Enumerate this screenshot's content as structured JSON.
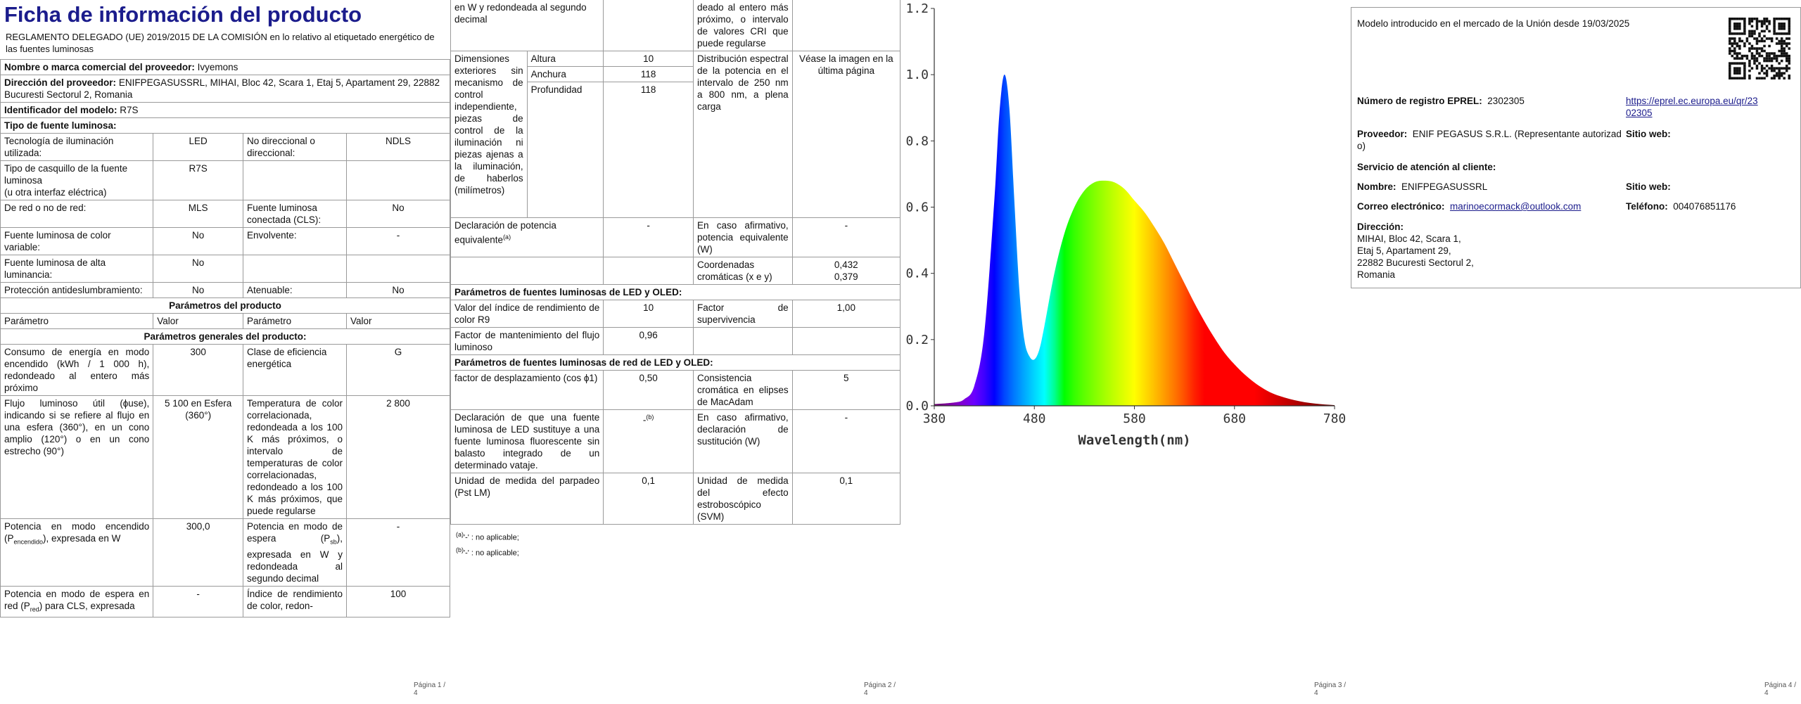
{
  "p1": {
    "title": "Ficha de información del producto",
    "regulation": "REGLAMENTO DELEGADO (UE) 2019/2015 DE LA COMISIÓN en lo relativo al etiquetado energético de las fuentes luminosas",
    "supplier_label": "Nombre o marca comercial del proveedor:",
    "supplier_value": "Ivyemons",
    "address_label": "Dirección del proveedor:",
    "address_value": "ENIFPEGASUSSRL, MIHAI, Bloc 42, Scara 1, Etaj 5, Apartament 29, 22882 Bucuresti Sectorul 2, Romania",
    "model_label": "Identificador del modelo:",
    "model_value": "R7S",
    "type_label": "Tipo de fuente luminosa:",
    "rows": {
      "tech_l": "Tecnología de iluminación utilizada:",
      "tech_v": "LED",
      "dir_l": "No direccional o direccional:",
      "dir_v": "NDLS",
      "cap_l": "Tipo de casquillo de la fuente luminosa",
      "cap_l2": "(u otra interfaz eléctrica)",
      "cap_v": "R7S",
      "mains_l": "De red o no de red:",
      "mains_v": "MLS",
      "cls_l": "Fuente luminosa conectada (CLS):",
      "cls_v": "No",
      "colvar_l": "Fuente luminosa de color variable:",
      "colvar_v": "No",
      "env_l": "Envolvente:",
      "env_v": "-",
      "hl_l": "Fuente luminosa de alta luminancia:",
      "hl_v": "No",
      "glare_l": "Protección antideslumbramiento:",
      "glare_v": "No",
      "dim_l": "Atenuable:",
      "dim_v": "No"
    },
    "product_params": "Parámetros del producto",
    "col_param": "Parámetro",
    "col_value": "Valor",
    "general_params": "Parámetros generales del producto:",
    "energy_l": "Consumo de energía en modo encendido (kWh / 1 000 h), redondeado al entero más próximo",
    "energy_v": "300",
    "class_l": "Clase de eficiencia energética",
    "class_v": "G",
    "flux_l": "Flujo luminoso útil (ɸuse), indicando si se refiere al flujo en una esfera (360°), en un cono amplio (120°) o en un cono estrecho (90°)",
    "flux_v": "5 100 en Esfera (360°)",
    "cct_l": "Temperatura de color correlacionada, redondeada a los 100 K más próximos, o intervalo de temperaturas de color correlacionadas, redondeado a los 100 K más próximos, que puede regularse",
    "cct_v": "2 800",
    "pon_l1": "Potencia en modo encendido (P",
    "pon_sub": "encendido",
    "pon_l2": "), expresada en W",
    "pon_v": "300,0",
    "psb_l1": "Potencia en modo de espera (P",
    "psb_sub": "sb",
    "psb_l2": "), expresada en W y redondeada al segundo decimal",
    "psb_v": "-",
    "pnet_l1": "Potencia en modo de espera en red (P",
    "pnet_sub": "red",
    "pnet_l2": ") para CLS, expresada",
    "pnet_v": "-",
    "cri_l": "Índice de rendimiento de color, redon-",
    "cri_v": "100",
    "footer": "Página 1 / 4"
  },
  "p2": {
    "cont_l": "en W y redondeada al segundo decimal",
    "cont_r": "deado al entero más próximo, o intervalo de valores CRI que puede regularse",
    "dims_l": "Dimensiones exteriores sin mecanismo de control independiente, piezas de control de la iluminación ni piezas ajenas a la iluminación, de haberlos (milímetros)",
    "height_l": "Altura",
    "height_v": "10",
    "width_l": "Anchura",
    "width_v": "118",
    "depth_l": "Profundidad",
    "depth_v": "118",
    "spd_l": "Distribución espectral de la potencia en el intervalo de 250 nm a 800 nm, a plena carga",
    "spd_v": "Véase la imagen en la última página",
    "equiv_l": "Declaración de potencia equivalente",
    "equiv_sup": "(a)",
    "equiv_v": "-",
    "equiv_w_l": "En caso afirmativo, potencia equivalente (W)",
    "equiv_w_v": "-",
    "chroma_l": "Coordenadas cromáticas (x e y)",
    "chroma_x": "0,432",
    "chroma_y": "0,379",
    "led_params": "Parámetros de fuentes luminosas de LED y OLED:",
    "r9_l": "Valor del índice de rendimiento de color R9",
    "r9_v": "10",
    "surv_l": "Factor de supervivencia",
    "surv_v": "1,00",
    "maint_l": "Factor de mantenimiento del flujo luminoso",
    "maint_v": "0,96",
    "mains_led_params": "Parámetros de fuentes luminosas de red de LED y OLED:",
    "disp_l": "factor de desplazamiento (cos ϕ1)",
    "disp_v": "0,50",
    "macadam_l": "Consistencia cromática en elipses de MacAdam",
    "macadam_v": "5",
    "repl_l": "Declaración de que una fuente luminosa de LED sustituye a una fuente luminosa fluorescente sin balasto integrado de un determinado vataje.",
    "repl_v": "-",
    "repl_sup": "(b)",
    "repl_w_l": "En caso afirmativo, declaración de sustitución (W)",
    "repl_w_v": "-",
    "pst_l": "Unidad de medida del parpadeo (Pst LM)",
    "pst_v": "0,1",
    "svm_l": "Unidad de medida del efecto estroboscópico (SVM)",
    "svm_v": "0,1",
    "note_a_sup": "(a)",
    "note_a": "'-' : no aplicable;",
    "note_b_sup": "(b)",
    "note_b": "'-' : no aplicable;",
    "footer": "Página 2 / 4"
  },
  "p3": {
    "footer": "Página 3 / 4"
  },
  "chart_data": {
    "type": "area",
    "title": "",
    "xlabel": "Wavelength(nm)",
    "ylabel": "",
    "xlim": [
      380,
      780
    ],
    "ylim": [
      0,
      1.2
    ],
    "xticks": [
      380,
      480,
      580,
      680,
      780
    ],
    "yticks": [
      0.0,
      0.2,
      0.4,
      0.6,
      0.8,
      1.0,
      1.2
    ],
    "grid": false,
    "x": [
      380,
      400,
      410,
      420,
      430,
      440,
      445,
      450,
      455,
      460,
      465,
      470,
      475,
      480,
      485,
      490,
      500,
      510,
      520,
      530,
      540,
      550,
      560,
      570,
      580,
      590,
      600,
      610,
      620,
      630,
      640,
      650,
      660,
      670,
      680,
      690,
      700,
      710,
      720,
      730,
      740,
      750,
      760,
      770,
      780
    ],
    "series": [
      {
        "values": [
          0.005,
          0.01,
          0.02,
          0.06,
          0.22,
          0.62,
          0.88,
          1.0,
          0.9,
          0.62,
          0.35,
          0.2,
          0.15,
          0.14,
          0.17,
          0.24,
          0.4,
          0.52,
          0.6,
          0.65,
          0.675,
          0.68,
          0.675,
          0.655,
          0.62,
          0.585,
          0.54,
          0.49,
          0.43,
          0.37,
          0.31,
          0.255,
          0.205,
          0.16,
          0.125,
          0.095,
          0.07,
          0.05,
          0.035,
          0.025,
          0.017,
          0.011,
          0.007,
          0.004,
          0.002
        ]
      }
    ]
  },
  "p4": {
    "intro": "Modelo introducido en el mercado de la Unión desde 19/03/2025",
    "eprel_l": "Número de registro EPREL:",
    "eprel_v": "2302305",
    "eprel_link1": "https://eprel.ec.europa.eu/qr/23",
    "eprel_link2": "02305",
    "prov_l": "Proveedor:",
    "prov_v1": "ENIF PEGASUS S.R.L. (Representante autorizad",
    "prov_v2": "o)",
    "web_l": "Sitio web:",
    "service_l": "Servicio de atención al cliente:",
    "name_l": "Nombre:",
    "name_v": "ENIFPEGASUSSRL",
    "web2_l": "Sitio web:",
    "email_l": "Correo electrónico:",
    "email_v": "marinoecormack@outlook.com",
    "phone_l": "Teléfono:",
    "phone_v": "004076851176",
    "addr_l": "Dirección:",
    "addr_1": "MIHAI, Bloc 42, Scara 1,",
    "addr_2": "Etaj 5, Apartament 29,",
    "addr_3": "22882 Bucuresti Sectorul 2,",
    "addr_4": "Romania",
    "qr_icon": "qr-code-icon",
    "footer": "Página 4 / 4"
  }
}
